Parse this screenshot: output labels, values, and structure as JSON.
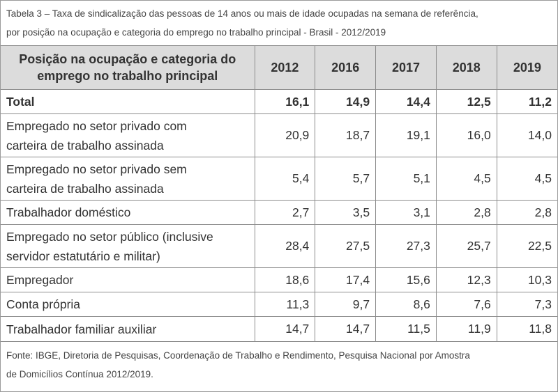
{
  "caption": {
    "line1": "Tabela 3 – Taxa de sindicalização das pessoas de 14 anos ou mais de idade ocupadas na semana de referência,",
    "line2": "por posição na ocupação e categoria do emprego no trabalho principal - Brasil -  2012/2019"
  },
  "table": {
    "header": {
      "label_line1": "Posição na ocupação e categoria do",
      "label_line2": "emprego no trabalho principal",
      "years": [
        "2012",
        "2016",
        "2017",
        "2018",
        "2019"
      ]
    },
    "rows": [
      {
        "label1": "Total",
        "label2": "",
        "values": [
          "16,1",
          "14,9",
          "14,4",
          "12,5",
          "11,2"
        ]
      },
      {
        "label1": "Empregado no setor privado com",
        "label2": "carteira de trabalho assinada",
        "values": [
          "20,9",
          "18,7",
          "19,1",
          "16,0",
          "14,0"
        ]
      },
      {
        "label1": "Empregado no setor privado sem",
        "label2": "carteira de trabalho assinada",
        "values": [
          "5,4",
          "5,7",
          "5,1",
          "4,5",
          "4,5"
        ]
      },
      {
        "label1": "Trabalhador doméstico",
        "label2": "",
        "values": [
          "2,7",
          "3,5",
          "3,1",
          "2,8",
          "2,8"
        ]
      },
      {
        "label1": "Empregado no setor público (inclusive",
        "label2": "servidor estatutário e militar)",
        "values": [
          "28,4",
          "27,5",
          "27,3",
          "25,7",
          "22,5"
        ]
      },
      {
        "label1": "Empregador",
        "label2": "",
        "values": [
          "18,6",
          "17,4",
          "15,6",
          "12,3",
          "10,3"
        ]
      },
      {
        "label1": "Conta própria",
        "label2": "",
        "values": [
          "11,3",
          "9,7",
          "8,6",
          "7,6",
          "7,3"
        ]
      },
      {
        "label1": "Trabalhador familiar auxiliar",
        "label2": "",
        "values": [
          "14,7",
          "14,7",
          "11,5",
          "11,9",
          "11,8"
        ]
      }
    ]
  },
  "source": {
    "line1": "Fonte: IBGE, Diretoria de Pesquisas, Coordenação de Trabalho e Rendimento, Pesquisa Nacional por Amostra",
    "line2": "de Domicílios Contínua 2012/2019."
  }
}
